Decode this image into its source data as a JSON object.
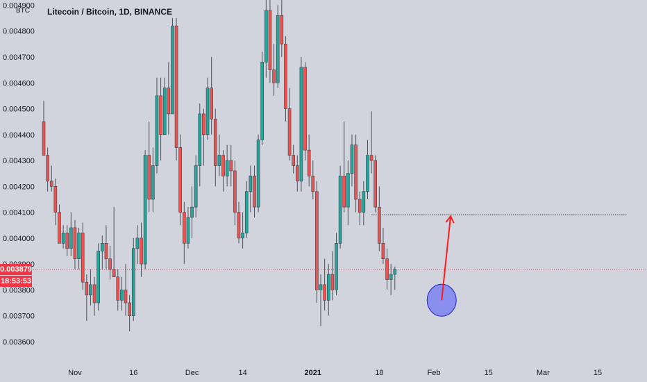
{
  "header": {
    "title": "Litecoin / Bitcoin, 1D, BINANCE",
    "currency": "BTC"
  },
  "price_badges": {
    "last_price": "0.003879",
    "countdown": "18:53:53"
  },
  "colors": {
    "background": "#d1d4dc",
    "up": "#26a69a",
    "down": "#ef5350",
    "wick": "#4a4e5a",
    "badge": "#f23645",
    "arrow": "#ff1a1a",
    "circle_fill": "#7b82f0",
    "circle_stroke": "#2020d0",
    "resistance_line": "#3a3e48",
    "last_price_line": "#f23645"
  },
  "chart_data": {
    "type": "candlestick",
    "title": "Litecoin / Bitcoin, 1D, BINANCE",
    "y_unit": "BTC",
    "ylim": [
      0.00353,
      0.00492
    ],
    "y_ticks": [
      "0.003600",
      "0.003700",
      "0.003800",
      "0.003900",
      "0.004000",
      "0.004100",
      "0.004200",
      "0.004300",
      "0.004400",
      "0.004500",
      "0.004600",
      "0.004700",
      "0.004800",
      "0.004900"
    ],
    "x_ticks": [
      {
        "label": "Nov",
        "date": "2020-11-01"
      },
      {
        "label": "16",
        "date": "2020-11-16"
      },
      {
        "label": "Dec",
        "date": "2020-12-01"
      },
      {
        "label": "14",
        "date": "2020-12-14"
      },
      {
        "label": "2021",
        "date": "2021-01-01",
        "bold": true
      },
      {
        "label": "18",
        "date": "2021-01-18"
      },
      {
        "label": "Feb",
        "date": "2021-02-01"
      },
      {
        "label": "15",
        "date": "2021-02-15"
      },
      {
        "label": "Mar",
        "date": "2021-03-01"
      },
      {
        "label": "15",
        "date": "2021-03-15"
      }
    ],
    "first_date": "2020-10-24",
    "ohlc": [
      [
        0.00445,
        0.00453,
        0.00432,
        0.00432
      ],
      [
        0.00432,
        0.00435,
        0.00418,
        0.00422
      ],
      [
        0.00422,
        0.00428,
        0.00418,
        0.0042
      ],
      [
        0.0042,
        0.00423,
        0.00405,
        0.0041
      ],
      [
        0.0041,
        0.00413,
        0.00398,
        0.00398
      ],
      [
        0.00398,
        0.00405,
        0.00396,
        0.00402
      ],
      [
        0.00402,
        0.00405,
        0.00393,
        0.00396
      ],
      [
        0.00396,
        0.0041,
        0.00393,
        0.00404
      ],
      [
        0.00404,
        0.00407,
        0.00388,
        0.00392
      ],
      [
        0.00392,
        0.00404,
        0.00388,
        0.00402
      ],
      [
        0.00402,
        0.00406,
        0.0038,
        0.00383
      ],
      [
        0.00383,
        0.00386,
        0.00368,
        0.00378
      ],
      [
        0.00378,
        0.00388,
        0.00374,
        0.00382
      ],
      [
        0.00382,
        0.00385,
        0.0037,
        0.00375
      ],
      [
        0.00375,
        0.00398,
        0.00372,
        0.00395
      ],
      [
        0.00395,
        0.00401,
        0.00388,
        0.00398
      ],
      [
        0.00398,
        0.00405,
        0.00388,
        0.00392
      ],
      [
        0.00392,
        0.00397,
        0.00384,
        0.00388
      ],
      [
        0.00388,
        0.00412,
        0.00385,
        0.00385
      ],
      [
        0.00385,
        0.00388,
        0.00372,
        0.00376
      ],
      [
        0.00376,
        0.00385,
        0.00372,
        0.0038
      ],
      [
        0.0038,
        0.0039,
        0.0037,
        0.00375
      ],
      [
        0.00375,
        0.00378,
        0.00364,
        0.0037
      ],
      [
        0.0037,
        0.004,
        0.00368,
        0.00396
      ],
      [
        0.00396,
        0.00405,
        0.0039,
        0.004
      ],
      [
        0.004,
        0.00406,
        0.00385,
        0.0039
      ],
      [
        0.0039,
        0.00434,
        0.00388,
        0.00432
      ],
      [
        0.00432,
        0.00445,
        0.0041,
        0.00415
      ],
      [
        0.00415,
        0.00435,
        0.0041,
        0.00428
      ],
      [
        0.00428,
        0.00462,
        0.00425,
        0.00455
      ],
      [
        0.00455,
        0.00462,
        0.0043,
        0.0044
      ],
      [
        0.0044,
        0.00462,
        0.0044,
        0.00458
      ],
      [
        0.00458,
        0.00468,
        0.0044,
        0.00448
      ],
      [
        0.00448,
        0.00485,
        0.00448,
        0.00482
      ],
      [
        0.00482,
        0.00485,
        0.0043,
        0.00435
      ],
      [
        0.00435,
        0.0044,
        0.00405,
        0.0041
      ],
      [
        0.0041,
        0.00414,
        0.0039,
        0.00398
      ],
      [
        0.00398,
        0.00412,
        0.00396,
        0.00408
      ],
      [
        0.00408,
        0.0042,
        0.004,
        0.00412
      ],
      [
        0.00412,
        0.00432,
        0.00408,
        0.00428
      ],
      [
        0.00428,
        0.00452,
        0.0042,
        0.00448
      ],
      [
        0.00448,
        0.0045,
        0.00428,
        0.0044
      ],
      [
        0.0044,
        0.00462,
        0.00438,
        0.00458
      ],
      [
        0.00458,
        0.0047,
        0.0044,
        0.00446
      ],
      [
        0.00446,
        0.0045,
        0.0042,
        0.00428
      ],
      [
        0.00428,
        0.0044,
        0.00424,
        0.00432
      ],
      [
        0.00432,
        0.00434,
        0.00418,
        0.00424
      ],
      [
        0.00424,
        0.00436,
        0.0042,
        0.0043
      ],
      [
        0.0043,
        0.00436,
        0.0042,
        0.00426
      ],
      [
        0.00426,
        0.0043,
        0.00405,
        0.0041
      ],
      [
        0.0041,
        0.00414,
        0.00398,
        0.004
      ],
      [
        0.004,
        0.0041,
        0.00396,
        0.00402
      ],
      [
        0.00402,
        0.00422,
        0.004,
        0.00418
      ],
      [
        0.00418,
        0.00428,
        0.0041,
        0.00424
      ],
      [
        0.00424,
        0.00428,
        0.00408,
        0.00412
      ],
      [
        0.00412,
        0.0044,
        0.0041,
        0.00438
      ],
      [
        0.00438,
        0.00472,
        0.00436,
        0.00468
      ],
      [
        0.00468,
        0.00492,
        0.00462,
        0.00488
      ],
      [
        0.00488,
        0.00492,
        0.0046,
        0.00465
      ],
      [
        0.00465,
        0.00475,
        0.00455,
        0.0046
      ],
      [
        0.0046,
        0.0049,
        0.00458,
        0.00486
      ],
      [
        0.00486,
        0.00492,
        0.0047,
        0.00475
      ],
      [
        0.00475,
        0.00478,
        0.00445,
        0.0045
      ],
      [
        0.0045,
        0.00458,
        0.0043,
        0.00432
      ],
      [
        0.00432,
        0.00436,
        0.00425,
        0.00428
      ],
      [
        0.00428,
        0.00432,
        0.00418,
        0.00422
      ],
      [
        0.00422,
        0.0047,
        0.00418,
        0.00466
      ],
      [
        0.00466,
        0.00468,
        0.0043,
        0.00434
      ],
      [
        0.00434,
        0.0044,
        0.0042,
        0.00424
      ],
      [
        0.00424,
        0.0043,
        0.00415,
        0.00418
      ],
      [
        0.00418,
        0.00422,
        0.00375,
        0.0038
      ],
      [
        0.0038,
        0.00386,
        0.00366,
        0.00382
      ],
      [
        0.00382,
        0.00392,
        0.00372,
        0.00376
      ],
      [
        0.00376,
        0.0039,
        0.0037,
        0.00386
      ],
      [
        0.00386,
        0.00395,
        0.00376,
        0.0038
      ],
      [
        0.0038,
        0.00402,
        0.00378,
        0.00398
      ],
      [
        0.00398,
        0.00428,
        0.00396,
        0.00424
      ],
      [
        0.00424,
        0.00445,
        0.0041,
        0.00412
      ],
      [
        0.00412,
        0.0043,
        0.00405,
        0.00425
      ],
      [
        0.00425,
        0.0044,
        0.0042,
        0.00436
      ],
      [
        0.00436,
        0.0044,
        0.0041,
        0.00415
      ],
      [
        0.00415,
        0.00418,
        0.00405,
        0.0041
      ],
      [
        0.0041,
        0.00422,
        0.00405,
        0.00418
      ],
      [
        0.00418,
        0.00438,
        0.00415,
        0.00432
      ],
      [
        0.00432,
        0.00449,
        0.00425,
        0.0043
      ],
      [
        0.0043,
        0.00432,
        0.0041,
        0.00412
      ],
      [
        0.00412,
        0.0042,
        0.00395,
        0.00398
      ],
      [
        0.00398,
        0.00404,
        0.0039,
        0.00392
      ],
      [
        0.00392,
        0.00396,
        0.0038,
        0.00384
      ],
      [
        0.00384,
        0.0039,
        0.00378,
        0.00386
      ],
      [
        0.00386,
        0.00389,
        0.0038,
        0.00388
      ]
    ],
    "annotations": {
      "resistance_level": 0.00409,
      "last_price": 0.003879,
      "circle_center": {
        "date": "2021-02-03",
        "price": 0.00376
      },
      "arrow_from": {
        "date": "2021-02-03",
        "price": 0.00376
      },
      "arrow_to": {
        "date": "2021-02-06",
        "price": 0.00409
      }
    }
  }
}
